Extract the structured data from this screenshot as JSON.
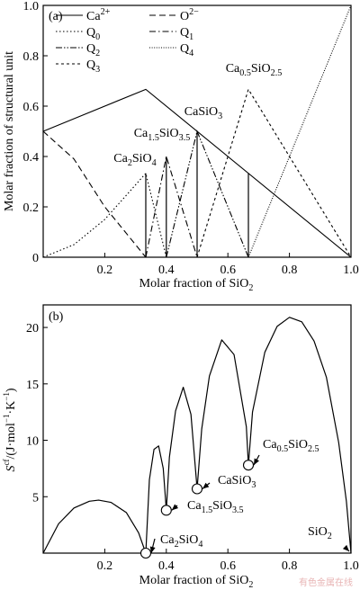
{
  "chart_data": [
    {
      "type": "line",
      "panel_label": "(a)",
      "xlabel": "Molar fraction of SiO",
      "xlabel_sub": "2",
      "ylabel": "Molar fraction of structural unit",
      "xlim": [
        0,
        1
      ],
      "ylim": [
        0,
        1
      ],
      "x_ticks": [
        "0.2",
        "0.4",
        "0.6",
        "0.8",
        "1.0"
      ],
      "y_ticks": [
        "0",
        "0.2",
        "0.4",
        "0.6",
        "0.8",
        "1.0"
      ],
      "legend_placement": "top-left",
      "series": [
        {
          "name": "Ca",
          "sup": "2+",
          "style": "solid",
          "x": [
            0,
            0.3333,
            1.0
          ],
          "y": [
            0.5,
            0.6667,
            0
          ]
        },
        {
          "name": "O",
          "sup": "2−",
          "style": "dashed",
          "x": [
            0,
            0.1,
            0.2,
            0.3333
          ],
          "y": [
            0.5,
            0.39,
            0.2,
            0
          ]
        },
        {
          "name": "Q",
          "sub": "0",
          "style": "dotted",
          "x": [
            0,
            0.1,
            0.2,
            0.3333,
            0.4
          ],
          "y": [
            0,
            0.05,
            0.15,
            0.333,
            0
          ]
        },
        {
          "name": "Q",
          "sub": "1",
          "style": "dashdot",
          "x": [
            0.3333,
            0.4,
            0.5
          ],
          "y": [
            0,
            0.4,
            0
          ]
        },
        {
          "name": "Q",
          "sub": "2",
          "style": "dashdotdot",
          "x": [
            0.4,
            0.5,
            0.6667
          ],
          "y": [
            0,
            0.5,
            0
          ]
        },
        {
          "name": "Q",
          "sub": "3",
          "style": "short-dashed",
          "x": [
            0.5,
            0.6667,
            1.0
          ],
          "y": [
            0,
            0.6667,
            0
          ]
        },
        {
          "name": "Q",
          "sub": "4",
          "style": "fine-dotted",
          "x": [
            0.6667,
            1.0
          ],
          "y": [
            0,
            1.0
          ]
        }
      ],
      "annotations": [
        {
          "parts": [
            [
              "Ca",
              "n"
            ],
            [
              "2",
              "sub"
            ],
            [
              "SiO",
              "n"
            ],
            [
              "4",
              "sub"
            ]
          ],
          "x": 0.3333
        },
        {
          "parts": [
            [
              "Ca",
              "n"
            ],
            [
              "1.5",
              "sub"
            ],
            [
              "SiO",
              "n"
            ],
            [
              "3.5",
              "sub"
            ]
          ],
          "x": 0.4
        },
        {
          "parts": [
            [
              "CaSiO",
              "n"
            ],
            [
              "3",
              "sub"
            ]
          ],
          "x": 0.5
        },
        {
          "parts": [
            [
              "Ca",
              "n"
            ],
            [
              "0.5",
              "sub"
            ],
            [
              "SiO",
              "n"
            ],
            [
              "2.5",
              "sub"
            ]
          ],
          "x": 0.6667
        }
      ]
    },
    {
      "type": "line",
      "panel_label": "(b)",
      "xlabel": "Molar fraction of SiO",
      "xlabel_sub": "2",
      "ylabel": "S",
      "ylabel_sup": "cf",
      "ylabel_rest": "/(J·mol",
      "ylabel_sup2": "−1",
      "ylabel_rest2": "·K",
      "ylabel_sup3": "−1",
      "ylabel_end": ")",
      "xlim": [
        0,
        1
      ],
      "ylim": [
        0,
        22
      ],
      "x_ticks": [
        "0.2",
        "0.4",
        "0.6",
        "0.8",
        "1.0"
      ],
      "y_ticks": [
        "5",
        "10",
        "15",
        "20"
      ],
      "series": [
        {
          "style": "solid",
          "x": [
            0,
            0.05,
            0.1,
            0.15,
            0.18,
            0.22,
            0.27,
            0.31,
            0.3333,
            0.345,
            0.36,
            0.375,
            0.39,
            0.4,
            0.41,
            0.43,
            0.455,
            0.48,
            0.5,
            0.515,
            0.54,
            0.58,
            0.62,
            0.66,
            0.6667,
            0.68,
            0.72,
            0.76,
            0.8,
            0.84,
            0.88,
            0.92,
            0.96,
            0.985,
            1.0
          ],
          "y": [
            0,
            2.6,
            4.0,
            4.6,
            4.7,
            4.5,
            3.6,
            1.8,
            0,
            6.5,
            9.2,
            9.5,
            7.5,
            3.8,
            8.5,
            12.6,
            14.7,
            12.3,
            5.7,
            11.0,
            15.7,
            18.9,
            17.6,
            11.2,
            7.8,
            12.5,
            17.8,
            20.1,
            20.9,
            20.5,
            18.8,
            15.6,
            9.8,
            4.6,
            0
          ]
        }
      ],
      "annotations": [
        {
          "parts": [
            [
              "Ca",
              "n"
            ],
            [
              "2",
              "sub"
            ],
            [
              "SiO",
              "n"
            ],
            [
              "4",
              "sub"
            ]
          ],
          "x": 0.3333,
          "y": 0
        },
        {
          "parts": [
            [
              "Ca",
              "n"
            ],
            [
              "1.5",
              "sub"
            ],
            [
              "SiO",
              "n"
            ],
            [
              "3.5",
              "sub"
            ]
          ],
          "x": 0.4,
          "y": 3.8
        },
        {
          "parts": [
            [
              "CaSiO",
              "n"
            ],
            [
              "3",
              "sub"
            ]
          ],
          "x": 0.5,
          "y": 5.7
        },
        {
          "parts": [
            [
              "Ca",
              "n"
            ],
            [
              "0.5",
              "sub"
            ],
            [
              "SiO",
              "n"
            ],
            [
              "2.5",
              "sub"
            ]
          ],
          "x": 0.6667,
          "y": 7.8
        },
        {
          "parts": [
            [
              "SiO",
              "n"
            ],
            [
              "2",
              "sub"
            ]
          ],
          "x": 1.0,
          "y": 0
        }
      ]
    }
  ],
  "watermark": "有色金属在线"
}
